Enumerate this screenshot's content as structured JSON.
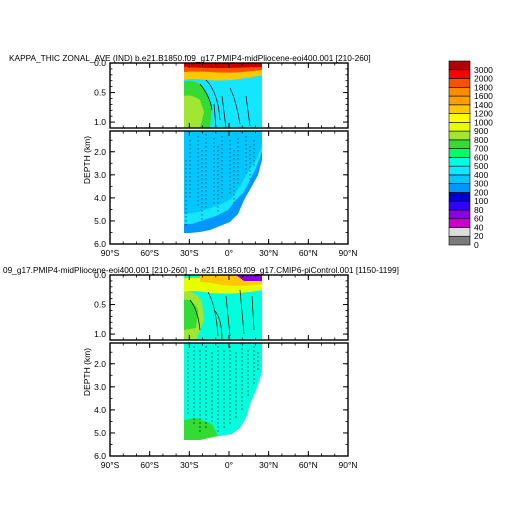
{
  "chart_data": [
    {
      "type": "heatmap",
      "title": "KAPPA_THIC ZONAL_AVE (IND) b.e21.B1850.f09_g17.PMIP4-midPliocene-eoi400.001 [210-260]",
      "ylabel": "DEPTH (km)",
      "x_ticks": [
        "90°S",
        "60°S",
        "30°S",
        "0°",
        "30°N",
        "60°N",
        "90°N"
      ],
      "xlim": [
        -90,
        90
      ],
      "upper_panel": {
        "ylim": [
          1.1,
          0.0
        ],
        "y_ticks": [
          "0.0",
          "0.5",
          "1.0"
        ]
      },
      "lower_panel": {
        "ylim": [
          6.0,
          1.1
        ],
        "y_ticks": [
          "2.0",
          "3.0",
          "4.0",
          "5.0",
          "6.0"
        ]
      },
      "data_extent_lat": [
        -34,
        26
      ],
      "colorbar": {
        "levels": [
          "0",
          "20",
          "40",
          "60",
          "80",
          "100",
          "200",
          "300",
          "400",
          "500",
          "600",
          "700",
          "800",
          "900",
          "1000",
          "1200",
          "1400",
          "1600",
          "1800",
          "2000",
          "3000"
        ],
        "colors": [
          "#7a7a7a",
          "#dcdcdc",
          "#c800c8",
          "#8a00e0",
          "#3200ff",
          "#0000cd",
          "#0096ff",
          "#00c8ff",
          "#14e6ff",
          "#00ffdc",
          "#00ff64",
          "#32dc32",
          "#a0e632",
          "#e6ff00",
          "#ffff00",
          "#ffc800",
          "#ffa000",
          "#ff8c00",
          "#ff5000",
          "#ff0000",
          "#b40000"
        ]
      }
    },
    {
      "type": "heatmap",
      "title": "09_g17.PMIP4-midPliocene-eoi400.001 [210-260] - b.e21.B1850.f09_g17.CMIP6-piControl.001 [1150-1199]",
      "ylabel": "DEPTH (km)",
      "x_ticks": [
        "90°S",
        "60°S",
        "30°S",
        "0°",
        "30°N",
        "60°N",
        "90°N"
      ],
      "xlim": [
        -90,
        90
      ],
      "upper_panel": {
        "ylim": [
          1.1,
          0.0
        ],
        "y_ticks": [
          "0.0",
          "0.5",
          "1.0"
        ]
      },
      "lower_panel": {
        "ylim": [
          6.0,
          1.1
        ],
        "y_ticks": [
          "2.0",
          "3.0",
          "4.0",
          "5.0",
          "6.0"
        ]
      },
      "data_extent_lat": [
        -34,
        26
      ]
    }
  ]
}
